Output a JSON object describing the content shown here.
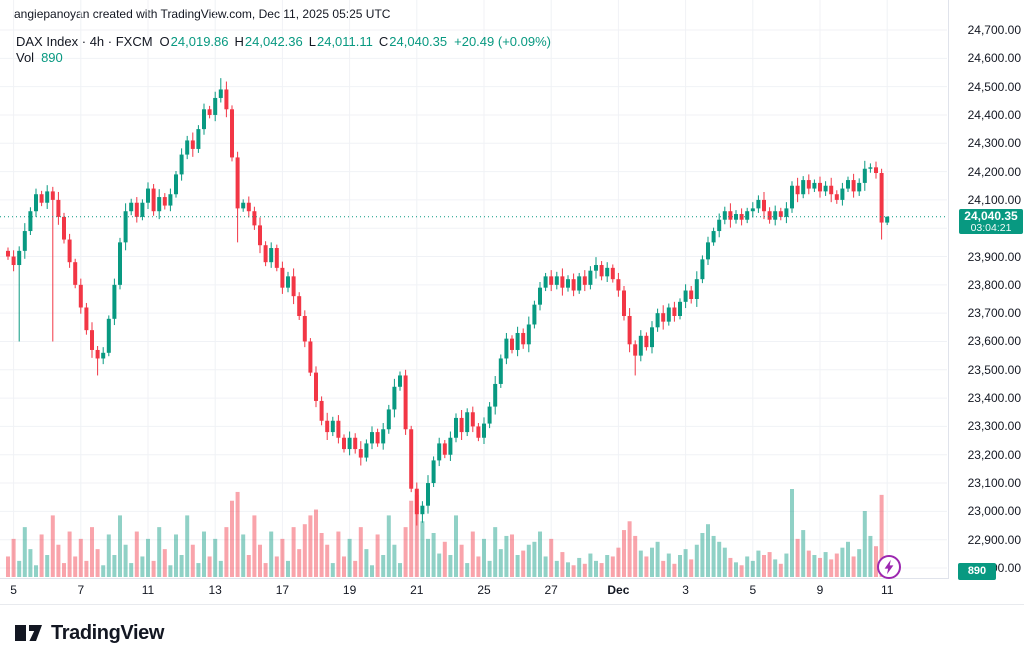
{
  "attribution": "angiepanoyan created with TradingView.com, Dec 11, 2025 05:25 UTC",
  "legend": {
    "title": "DAX Index · 4h · FXCM",
    "ohlc": [
      {
        "k": "O",
        "v": "24,019.86"
      },
      {
        "k": "H",
        "v": "24,042.36"
      },
      {
        "k": "L",
        "v": "24,011.11"
      },
      {
        "k": "C",
        "v": "24,040.35"
      }
    ],
    "change": "+20.49 (+0.09%)",
    "vol_label": "Vol",
    "vol_value": "890"
  },
  "price_axis": {
    "ticks": [
      "24,700.00",
      "24,600.00",
      "24,500.00",
      "24,400.00",
      "24,300.00",
      "24,200.00",
      "24,100.00",
      "24,000.00",
      "23,900.00",
      "23,800.00",
      "23,700.00",
      "23,600.00",
      "23,500.00",
      "23,400.00",
      "23,300.00",
      "23,200.00",
      "23,100.00",
      "23,000.00",
      "22,900.00",
      "22,800.00"
    ],
    "current": {
      "text": "24,040.35",
      "countdown": "03:04:21",
      "price": 24040.35
    },
    "volume_badge": "890"
  },
  "time_axis": {
    "labels": [
      {
        "text": "5",
        "bar": 1
      },
      {
        "text": "7",
        "bar": 13
      },
      {
        "text": "11",
        "bar": 25
      },
      {
        "text": "13",
        "bar": 37
      },
      {
        "text": "17",
        "bar": 49
      },
      {
        "text": "19",
        "bar": 61
      },
      {
        "text": "21",
        "bar": 73
      },
      {
        "text": "25",
        "bar": 85
      },
      {
        "text": "27",
        "bar": 97
      },
      {
        "text": "Dec",
        "bar": 109,
        "bold": true
      },
      {
        "text": "3",
        "bar": 121
      },
      {
        "text": "5",
        "bar": 133
      },
      {
        "text": "9",
        "bar": 145
      },
      {
        "text": "11",
        "bar": 157
      }
    ]
  },
  "footer": {
    "brand": "TradingView"
  },
  "colors": {
    "up": "#089981",
    "down": "#f23645",
    "vol_up": "rgba(8,153,129,0.45)",
    "vol_down": "rgba(242,54,69,0.45)",
    "grid": "#f0f2f6",
    "axis_border": "#e0e3eb",
    "text": "#131722",
    "badge": "#089981",
    "lightning": "#9c27b0"
  },
  "chart_data": {
    "type": "candlestick",
    "title": "DAX Index · 4h · FXCM",
    "ohlc_current": {
      "open": 24019.86,
      "high": 24042.36,
      "low": 24011.11,
      "close": 24040.35,
      "change": 20.49,
      "change_pct": 0.09,
      "volume": 890
    },
    "y_axis": {
      "min": 22800,
      "max": 24700,
      "step": 100
    },
    "x_axis_labels": [
      "5",
      "7",
      "11",
      "13",
      "17",
      "19",
      "21",
      "25",
      "27",
      "Dec",
      "3",
      "5",
      "9",
      "11"
    ],
    "current_price": 24040.35,
    "candles": [
      [
        23920,
        23932,
        23888,
        23900,
        1400
      ],
      [
        23900,
        23922,
        23848,
        23870,
        2600
      ],
      [
        23870,
        23936,
        23600,
        23920,
        1100
      ],
      [
        23920,
        24018,
        23892,
        23990,
        3400
      ],
      [
        23990,
        24074,
        23976,
        24060,
        1900
      ],
      [
        24060,
        24140,
        24040,
        24120,
        800
      ],
      [
        24120,
        24132,
        24078,
        24090,
        2900
      ],
      [
        24090,
        24152,
        24068,
        24130,
        1500
      ],
      [
        24130,
        24146,
        23600,
        24100,
        4200
      ],
      [
        24100,
        24128,
        24012,
        24040,
        2200
      ],
      [
        24040,
        24054,
        23946,
        23960,
        950
      ],
      [
        23960,
        23980,
        23860,
        23880,
        3100
      ],
      [
        23880,
        23892,
        23788,
        23800,
        1400
      ],
      [
        23800,
        23822,
        23698,
        23720,
        2600
      ],
      [
        23720,
        23736,
        23624,
        23640,
        1100
      ],
      [
        23640,
        23668,
        23542,
        23570,
        3400
      ],
      [
        23570,
        23584,
        23480,
        23540,
        1900
      ],
      [
        23540,
        23580,
        23520,
        23560,
        800
      ],
      [
        23560,
        23692,
        23548,
        23680,
        2900
      ],
      [
        23680,
        23822,
        23658,
        23800,
        1500
      ],
      [
        23800,
        23966,
        23784,
        23950,
        4200
      ],
      [
        23950,
        24088,
        23922,
        24060,
        2200
      ],
      [
        24060,
        24104,
        24046,
        24090,
        950
      ],
      [
        24090,
        24110,
        24020,
        24040,
        3100
      ],
      [
        24040,
        24102,
        24028,
        24090,
        1400
      ],
      [
        24090,
        24162,
        24068,
        24140,
        2600
      ],
      [
        24140,
        24156,
        24044,
        24060,
        1100
      ],
      [
        24060,
        24138,
        24032,
        24110,
        3400
      ],
      [
        24110,
        24124,
        24066,
        24080,
        1900
      ],
      [
        24080,
        24140,
        24060,
        24120,
        800
      ],
      [
        24120,
        24202,
        24108,
        24190,
        2900
      ],
      [
        24190,
        24282,
        24168,
        24260,
        1500
      ],
      [
        24260,
        24326,
        24244,
        24310,
        4200
      ],
      [
        24310,
        24338,
        24252,
        24280,
        2200
      ],
      [
        24280,
        24364,
        24266,
        24350,
        950
      ],
      [
        24350,
        24440,
        24330,
        24420,
        3100
      ],
      [
        24420,
        24432,
        24388,
        24400,
        1400
      ],
      [
        24400,
        24482,
        24378,
        24460,
        2600
      ],
      [
        24460,
        24530,
        24444,
        24490,
        1100
      ],
      [
        24490,
        24518,
        24392,
        24420,
        3400
      ],
      [
        24420,
        24434,
        24236,
        24250,
        5200
      ],
      [
        24250,
        24270,
        23950,
        24070,
        5800
      ],
      [
        24070,
        24102,
        24058,
        24090,
        2900
      ],
      [
        24090,
        24112,
        24038,
        24060,
        1500
      ],
      [
        24060,
        24076,
        23994,
        24010,
        4200
      ],
      [
        24010,
        24038,
        23912,
        23940,
        2200
      ],
      [
        23940,
        23954,
        23866,
        23880,
        950
      ],
      [
        23880,
        23950,
        23860,
        23930,
        3100
      ],
      [
        23930,
        23942,
        23848,
        23860,
        1400
      ],
      [
        23860,
        23882,
        23768,
        23790,
        2600
      ],
      [
        23790,
        23846,
        23774,
        23830,
        1100
      ],
      [
        23830,
        23858,
        23732,
        23760,
        3400
      ],
      [
        23760,
        23774,
        23676,
        23690,
        1900
      ],
      [
        23690,
        23710,
        23580,
        23600,
        3600
      ],
      [
        23600,
        23612,
        23478,
        23490,
        4200
      ],
      [
        23490,
        23512,
        23368,
        23390,
        4600
      ],
      [
        23390,
        23406,
        23304,
        23320,
        3000
      ],
      [
        23320,
        23348,
        23252,
        23280,
        2200
      ],
      [
        23280,
        23334,
        23266,
        23320,
        950
      ],
      [
        23320,
        23340,
        23240,
        23260,
        3100
      ],
      [
        23260,
        23272,
        23208,
        23220,
        1400
      ],
      [
        23220,
        23282,
        23198,
        23260,
        2600
      ],
      [
        23260,
        23276,
        23204,
        23220,
        1100
      ],
      [
        23220,
        23248,
        23162,
        23190,
        3400
      ],
      [
        23190,
        23254,
        23176,
        23240,
        1900
      ],
      [
        23240,
        23300,
        23220,
        23280,
        800
      ],
      [
        23280,
        23292,
        23228,
        23240,
        2900
      ],
      [
        23240,
        23312,
        23218,
        23290,
        1500
      ],
      [
        23290,
        23376,
        23274,
        23360,
        4200
      ],
      [
        23360,
        23468,
        23332,
        23440,
        2200
      ],
      [
        23440,
        23494,
        23426,
        23480,
        950
      ],
      [
        23480,
        23500,
        23270,
        23290,
        3400
      ],
      [
        23290,
        23302,
        23068,
        23080,
        5200
      ],
      [
        23080,
        23102,
        22950,
        22990,
        5600
      ],
      [
        22990,
        23036,
        22960,
        23020,
        3800
      ],
      [
        23020,
        23128,
        22992,
        23100,
        2600
      ],
      [
        23100,
        23194,
        23086,
        23180,
        3000
      ],
      [
        23180,
        23260,
        23160,
        23240,
        1600
      ],
      [
        23240,
        23252,
        23188,
        23200,
        2400
      ],
      [
        23200,
        23282,
        23178,
        23260,
        1500
      ],
      [
        23260,
        23346,
        23244,
        23330,
        4200
      ],
      [
        23330,
        23358,
        23252,
        23280,
        2200
      ],
      [
        23280,
        23364,
        23266,
        23350,
        950
      ],
      [
        23350,
        23370,
        23280,
        23300,
        3100
      ],
      [
        23300,
        23312,
        23248,
        23260,
        1400
      ],
      [
        23260,
        23332,
        23238,
        23310,
        2600
      ],
      [
        23310,
        23386,
        23294,
        23370,
        1100
      ],
      [
        23370,
        23478,
        23342,
        23450,
        3400
      ],
      [
        23450,
        23554,
        23436,
        23540,
        1900
      ],
      [
        23540,
        23630,
        23520,
        23610,
        2800
      ],
      [
        23610,
        23622,
        23558,
        23570,
        2900
      ],
      [
        23570,
        23652,
        23548,
        23630,
        1500
      ],
      [
        23630,
        23646,
        23574,
        23590,
        1800
      ],
      [
        23590,
        23688,
        23562,
        23660,
        2200
      ],
      [
        23660,
        23744,
        23646,
        23730,
        2400
      ],
      [
        23730,
        23810,
        23710,
        23790,
        3100
      ],
      [
        23790,
        23842,
        23778,
        23830,
        1400
      ],
      [
        23830,
        23852,
        23778,
        23800,
        2600
      ],
      [
        23800,
        23846,
        23784,
        23830,
        1100
      ],
      [
        23830,
        23858,
        23762,
        23790,
        1700
      ],
      [
        23790,
        23834,
        23776,
        23820,
        1000
      ],
      [
        23820,
        23840,
        23760,
        23780,
        800
      ],
      [
        23780,
        23842,
        23768,
        23830,
        1300
      ],
      [
        23830,
        23852,
        23778,
        23800,
        900
      ],
      [
        23800,
        23866,
        23784,
        23850,
        1600
      ],
      [
        23850,
        23898,
        23822,
        23870,
        1100
      ],
      [
        23870,
        23884,
        23816,
        23830,
        950
      ],
      [
        23830,
        23880,
        23810,
        23860,
        1500
      ],
      [
        23860,
        23872,
        23808,
        23820,
        1400
      ],
      [
        23820,
        23842,
        23758,
        23780,
        2000
      ],
      [
        23780,
        23796,
        23674,
        23690,
        3200
      ],
      [
        23690,
        23718,
        23562,
        23590,
        3800
      ],
      [
        23590,
        23604,
        23480,
        23550,
        2800
      ],
      [
        23550,
        23640,
        23530,
        23620,
        1800
      ],
      [
        23620,
        23632,
        23568,
        23580,
        1400
      ],
      [
        23580,
        23672,
        23558,
        23650,
        2000
      ],
      [
        23650,
        23716,
        23634,
        23700,
        2400
      ],
      [
        23700,
        23728,
        23642,
        23670,
        1100
      ],
      [
        23670,
        23734,
        23656,
        23720,
        1600
      ],
      [
        23720,
        23740,
        23670,
        23690,
        900
      ],
      [
        23690,
        23752,
        23678,
        23740,
        1500
      ],
      [
        23740,
        23802,
        23718,
        23780,
        1900
      ],
      [
        23780,
        23796,
        23734,
        23750,
        1200
      ],
      [
        23750,
        23848,
        23722,
        23820,
        2200
      ],
      [
        23820,
        23904,
        23806,
        23890,
        3000
      ],
      [
        23890,
        23970,
        23870,
        23950,
        3600
      ],
      [
        23950,
        24002,
        23938,
        23990,
        2800
      ],
      [
        23990,
        24052,
        23968,
        24030,
        2400
      ],
      [
        24030,
        24076,
        24014,
        24060,
        2000
      ],
      [
        24060,
        24088,
        24002,
        24030,
        1300
      ],
      [
        24030,
        24064,
        24016,
        24050,
        1000
      ],
      [
        24050,
        24070,
        24010,
        24030,
        800
      ],
      [
        24030,
        24072,
        24018,
        24060,
        1400
      ],
      [
        24060,
        24092,
        24038,
        24070,
        1100
      ],
      [
        24070,
        24116,
        24054,
        24100,
        1800
      ],
      [
        24100,
        24128,
        24032,
        24060,
        1500
      ],
      [
        24060,
        24074,
        24016,
        24030,
        1700
      ],
      [
        24030,
        24080,
        24010,
        24060,
        1200
      ],
      [
        24060,
        24072,
        24028,
        24040,
        900
      ],
      [
        24040,
        24092,
        24018,
        24070,
        1600
      ],
      [
        24070,
        24166,
        24054,
        24150,
        6000
      ],
      [
        24150,
        24178,
        24092,
        24120,
        2600
      ],
      [
        24120,
        24184,
        24106,
        24170,
        3200
      ],
      [
        24170,
        24190,
        24120,
        24140,
        1800
      ],
      [
        24140,
        24172,
        24128,
        24160,
        1500
      ],
      [
        24160,
        24182,
        24108,
        24130,
        1300
      ],
      [
        24130,
        24166,
        24114,
        24150,
        1700
      ],
      [
        24150,
        24178,
        24092,
        24120,
        1200
      ],
      [
        24120,
        24134,
        24086,
        24100,
        1600
      ],
      [
        24100,
        24160,
        24080,
        24140,
        2000
      ],
      [
        24140,
        24182,
        24128,
        24170,
        2400
      ],
      [
        24170,
        24192,
        24108,
        24130,
        1400
      ],
      [
        24130,
        24176,
        24114,
        24160,
        1900
      ],
      [
        24160,
        24238,
        24132,
        24210,
        4500
      ],
      [
        24210,
        24229,
        24196,
        24215,
        2800
      ],
      [
        24215,
        24235,
        24175,
        24195,
        2100
      ],
      [
        24195,
        24210,
        23960,
        24020,
        5600
      ],
      [
        24019.86,
        24042.36,
        24011.11,
        24040.35,
        890
      ]
    ]
  }
}
